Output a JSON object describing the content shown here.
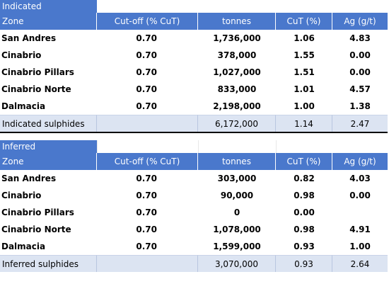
{
  "headers": {
    "zone": "Zone",
    "cutoff": "Cut-off (% CuT)",
    "tonnes": "tonnes",
    "cut": "CuT (%)",
    "ag": "Ag (g/t)"
  },
  "indicated": {
    "label": "Indicated",
    "rows": [
      {
        "zone": "San Andres",
        "cutoff": "0.70",
        "tonnes": "1,736,000",
        "cut": "1.06",
        "ag": "4.83"
      },
      {
        "zone": "Cinabrio",
        "cutoff": "0.70",
        "tonnes": "378,000",
        "cut": "1.55",
        "ag": "0.00"
      },
      {
        "zone": "Cinabrio Pillars",
        "cutoff": "0.70",
        "tonnes": "1,027,000",
        "cut": "1.51",
        "ag": "0.00"
      },
      {
        "zone": "Cinabrio Norte",
        "cutoff": "0.70",
        "tonnes": "833,000",
        "cut": "1.01",
        "ag": "4.57"
      },
      {
        "zone": "Dalmacia",
        "cutoff": "0.70",
        "tonnes": "2,198,000",
        "cut": "1.00",
        "ag": "1.38"
      }
    ],
    "total": {
      "label": "Indicated sulphides",
      "tonnes": "6,172,000",
      "cut": "1.14",
      "ag": "2.47"
    }
  },
  "inferred": {
    "label": "Inferred",
    "rows": [
      {
        "zone": "San Andres",
        "cutoff": "0.70",
        "tonnes": "303,000",
        "cut": "0.82",
        "ag": "4.03"
      },
      {
        "zone": "Cinabrio",
        "cutoff": "0.70",
        "tonnes": "90,000",
        "cut": "0.98",
        "ag": "0.00"
      },
      {
        "zone": "Cinabrio Pillars",
        "cutoff": "0.70",
        "tonnes": "0",
        "cut": "0.00",
        "ag": ""
      },
      {
        "zone": "Cinabrio Norte",
        "cutoff": "0.70",
        "tonnes": "1,078,000",
        "cut": "0.98",
        "ag": "4.91"
      },
      {
        "zone": "Dalmacia",
        "cutoff": "0.70",
        "tonnes": "1,599,000",
        "cut": "0.93",
        "ag": "1.00"
      }
    ],
    "total": {
      "label": "Inferred sulphides",
      "tonnes": "3,070,000",
      "cut": "0.93",
      "ag": "2.64"
    }
  }
}
